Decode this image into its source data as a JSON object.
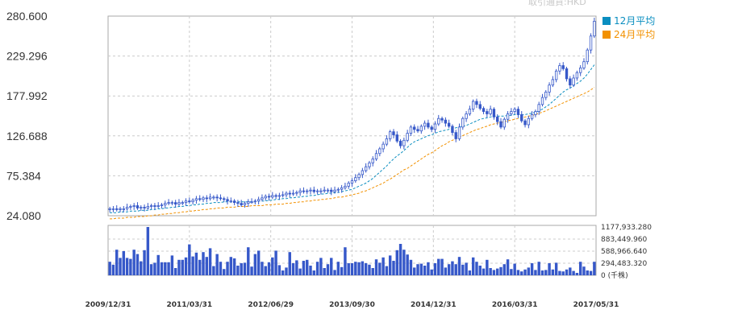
{
  "currency_note": "取引通貨:HKD",
  "legend": [
    {
      "label": "12月平均",
      "color": "#0a8ec0"
    },
    {
      "label": "24月平均",
      "color": "#f29100"
    }
  ],
  "colors": {
    "candle_up_fill": "#ffffff",
    "candle_down_fill": "#3658c9",
    "candle_stroke": "#3658c9",
    "volume_bar": "#3658c9",
    "grid": "#cccccc",
    "ma12": "#0a8ec0",
    "ma24": "#f29100"
  },
  "chart_data": {
    "type": "candlestick",
    "price_axis": {
      "ticks": [
        "280.600",
        "229.296",
        "177.992",
        "126.688",
        "75.384",
        "24.080"
      ],
      "ylim": [
        24.08,
        280.6
      ]
    },
    "x_labels": [
      "2009/12/31",
      "2011/03/31",
      "2012/06/29",
      "2013/09/30",
      "2014/12/31",
      "2016/03/31",
      "2017/05/31"
    ],
    "volume_axis": {
      "ticks": [
        "1177,933.280",
        "883,449.960",
        "588,966.640",
        "294,483.320",
        "0 (千株)"
      ],
      "ylim": [
        0,
        1177933.28
      ]
    },
    "close": [
      33,
      33,
      32,
      33,
      33,
      35,
      36,
      37,
      34,
      35,
      34,
      36,
      37,
      36,
      37,
      38,
      40,
      41,
      41,
      39,
      41,
      41,
      43,
      42,
      44,
      46,
      45,
      47,
      46,
      48,
      48,
      47,
      46,
      45,
      43,
      43,
      41,
      40,
      38,
      40,
      42,
      42,
      43,
      45,
      47,
      49,
      48,
      50,
      49,
      50,
      51,
      53,
      52,
      53,
      54,
      56,
      55,
      56,
      57,
      55,
      56,
      56,
      57,
      57,
      55,
      57,
      58,
      60,
      62,
      66,
      69,
      73,
      77,
      82,
      87,
      92,
      97,
      104,
      110,
      116,
      123,
      132,
      128,
      120,
      114,
      121,
      130,
      138,
      135,
      133,
      139,
      143,
      138,
      135,
      142,
      149,
      147,
      143,
      139,
      131,
      123,
      138,
      149,
      155,
      161,
      171,
      167,
      162,
      158,
      155,
      161,
      151,
      145,
      138,
      148,
      155,
      158,
      161,
      154,
      146,
      141,
      149,
      154,
      158,
      167,
      176,
      183,
      192,
      199,
      210,
      217,
      213,
      200,
      192,
      201,
      208,
      214,
      222,
      237,
      255,
      274
    ],
    "ma12": [
      28,
      28,
      28,
      29,
      29,
      29,
      30,
      30,
      30,
      31,
      31,
      31,
      32,
      32,
      33,
      33,
      34,
      34,
      35,
      35,
      36,
      36,
      37,
      37,
      38,
      38,
      39,
      39,
      40,
      40,
      41,
      41,
      41,
      42,
      42,
      42,
      42,
      42,
      42,
      42,
      42,
      42,
      42,
      43,
      43,
      43,
      44,
      44,
      45,
      45,
      46,
      46,
      47,
      47,
      48,
      48,
      49,
      49,
      50,
      50,
      51,
      52,
      52,
      53,
      53,
      54,
      54,
      55,
      56,
      57,
      58,
      60,
      62,
      64,
      66,
      69,
      72,
      76,
      80,
      84,
      88,
      93,
      97,
      101,
      104,
      108,
      112,
      116,
      119,
      121,
      123,
      125,
      127,
      128,
      130,
      132,
      133,
      134,
      135,
      136,
      137,
      138,
      139,
      140,
      142,
      144,
      146,
      148,
      149,
      150,
      151,
      152,
      152,
      152,
      152,
      153,
      153,
      154,
      154,
      154,
      154,
      155,
      156,
      157,
      159,
      161,
      164,
      167,
      171,
      175,
      179,
      183,
      186,
      188,
      191,
      194,
      197,
      201,
      206,
      212,
      218
    ],
    "ma24": [
      20,
      20,
      21,
      21,
      21,
      22,
      22,
      22,
      23,
      23,
      23,
      24,
      24,
      25,
      25,
      26,
      26,
      27,
      27,
      28,
      28,
      29,
      29,
      30,
      30,
      31,
      31,
      32,
      32,
      33,
      33,
      34,
      34,
      34,
      35,
      35,
      35,
      36,
      36,
      36,
      36,
      37,
      37,
      37,
      37,
      38,
      38,
      38,
      39,
      39,
      39,
      40,
      40,
      41,
      41,
      42,
      42,
      43,
      43,
      44,
      44,
      45,
      45,
      46,
      46,
      47,
      48,
      48,
      49,
      50,
      51,
      52,
      53,
      55,
      56,
      58,
      60,
      62,
      64,
      66,
      69,
      71,
      74,
      77,
      80,
      83,
      85,
      88,
      91,
      94,
      97,
      100,
      103,
      105,
      108,
      111,
      114,
      116,
      119,
      121,
      123,
      125,
      127,
      129,
      131,
      133,
      135,
      136,
      138,
      139,
      141,
      142,
      143,
      144,
      145,
      146,
      147,
      148,
      149,
      150,
      151,
      152,
      153,
      154,
      156,
      157,
      159,
      161,
      163,
      165,
      167,
      169,
      171,
      173,
      175,
      177,
      179,
      181,
      183,
      186,
      189
    ],
    "volume_ratio": [
      0.28,
      0.22,
      0.53,
      0.36,
      0.5,
      0.36,
      0.34,
      0.53,
      0.44,
      0.29,
      0.52,
      1.0,
      0.23,
      0.26,
      0.42,
      0.27,
      0.27,
      0.27,
      0.41,
      0.15,
      0.32,
      0.32,
      0.37,
      0.64,
      0.39,
      0.47,
      0.32,
      0.48,
      0.38,
      0.56,
      0.19,
      0.44,
      0.28,
      0.13,
      0.28,
      0.38,
      0.35,
      0.2,
      0.25,
      0.26,
      0.58,
      0.18,
      0.44,
      0.51,
      0.28,
      0.19,
      0.27,
      0.37,
      0.51,
      0.21,
      0.1,
      0.16,
      0.48,
      0.25,
      0.31,
      0.14,
      0.3,
      0.32,
      0.2,
      0.1,
      0.28,
      0.36,
      0.15,
      0.23,
      0.36,
      0.11,
      0.28,
      0.17,
      0.58,
      0.25,
      0.25,
      0.28,
      0.27,
      0.29,
      0.25,
      0.22,
      0.15,
      0.33,
      0.26,
      0.37,
      0.19,
      0.41,
      0.3,
      0.52,
      0.65,
      0.53,
      0.43,
      0.32,
      0.16,
      0.23,
      0.24,
      0.2,
      0.27,
      0.12,
      0.25,
      0.34,
      0.34,
      0.16,
      0.23,
      0.29,
      0.23,
      0.38,
      0.22,
      0.26,
      0.1,
      0.37,
      0.28,
      0.2,
      0.14,
      0.32,
      0.15,
      0.11,
      0.14,
      0.17,
      0.23,
      0.33,
      0.13,
      0.24,
      0.11,
      0.08,
      0.12,
      0.16,
      0.25,
      0.11,
      0.28,
      0.1,
      0.11,
      0.25,
      0.12,
      0.26,
      0.09,
      0.08,
      0.12,
      0.16,
      0.09,
      0.05,
      0.28,
      0.18,
      0.1,
      0.09,
      0.28
    ]
  }
}
